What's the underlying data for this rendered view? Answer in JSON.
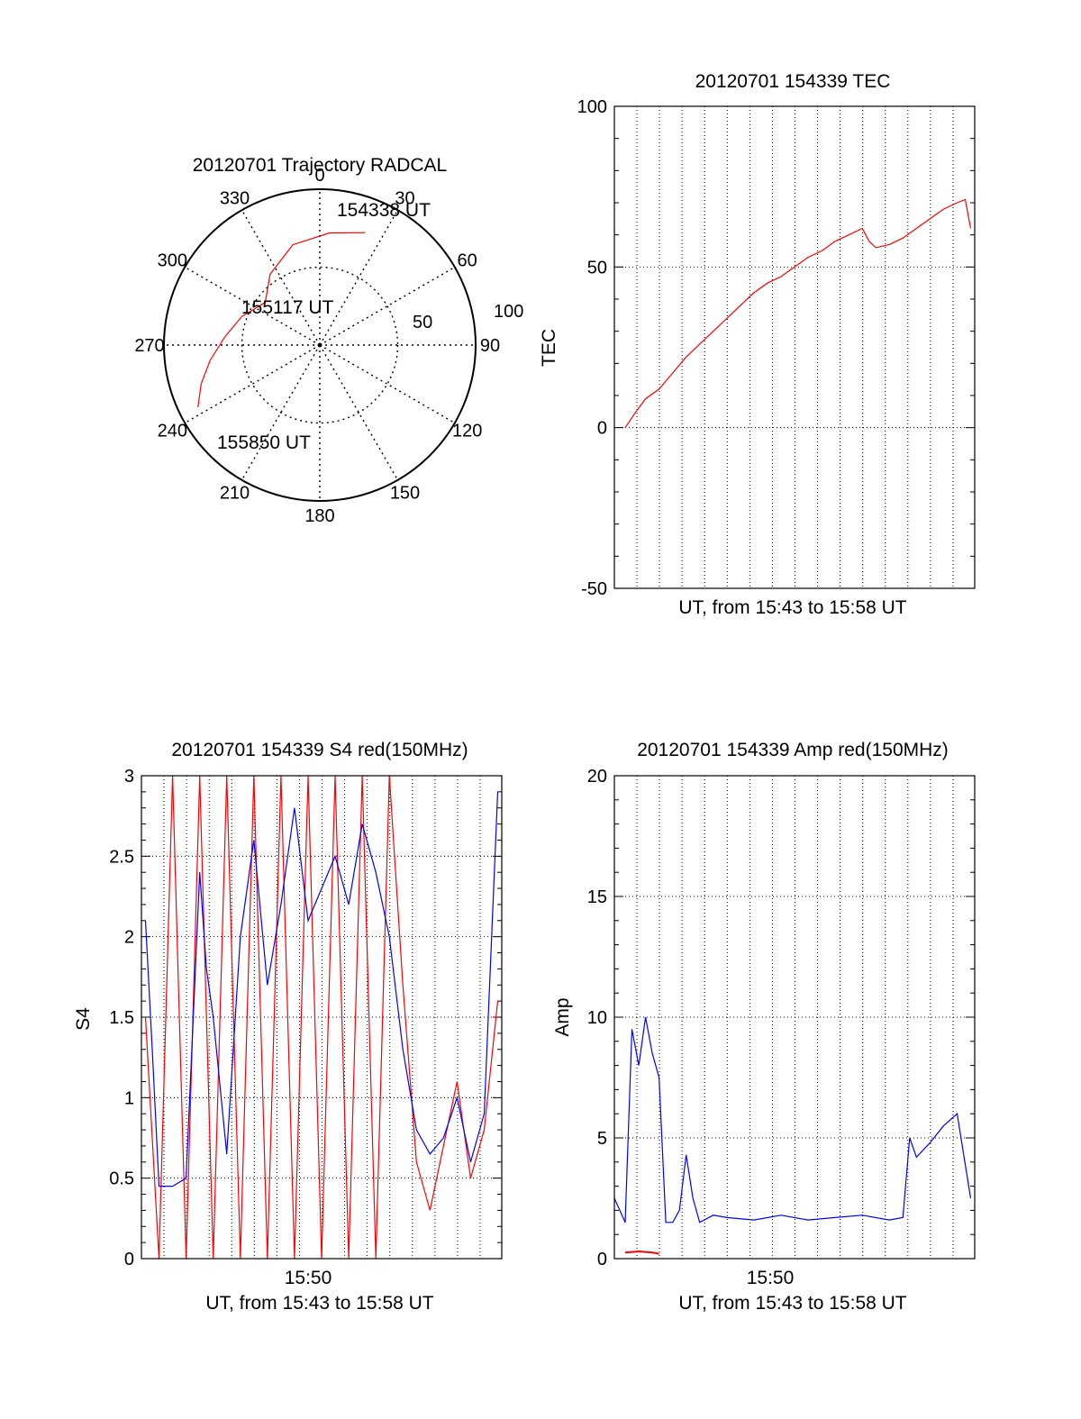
{
  "colors": {
    "red": "#ff0000",
    "blue": "#0000ff",
    "axis": "#000000",
    "grid": "#000000"
  },
  "chart_data": [
    {
      "id": "trajectory",
      "type": "polar",
      "title": "20120701 Trajectory RADCAL",
      "azimuth_labels": [
        "0",
        "30",
        "60",
        "90",
        "120",
        "150",
        "180",
        "210",
        "240",
        "270",
        "300",
        "330"
      ],
      "elevation_ring_labels": [
        "50",
        "100"
      ],
      "annotations": [
        {
          "text": "154338 UT",
          "azimuth": 22,
          "elevation": 20
        },
        {
          "text": "155117 UT",
          "azimuth": 308,
          "elevation": 50
        },
        {
          "text": "155850 UT",
          "azimuth": 243,
          "elevation": 11
        }
      ],
      "trajectory": {
        "color": "red",
        "points": [
          {
            "azimuth": 22,
            "elevation": 20
          },
          {
            "azimuth": 5,
            "elevation": 25
          },
          {
            "azimuth": 345,
            "elevation": 30
          },
          {
            "azimuth": 325,
            "elevation": 40
          },
          {
            "azimuth": 308,
            "elevation": 50
          },
          {
            "azimuth": 290,
            "elevation": 42
          },
          {
            "azimuth": 275,
            "elevation": 35
          },
          {
            "azimuth": 262,
            "elevation": 26
          },
          {
            "azimuth": 252,
            "elevation": 18
          },
          {
            "azimuth": 243,
            "elevation": 11
          }
        ]
      }
    },
    {
      "id": "tec",
      "type": "line",
      "title": "20120701 154339 TEC",
      "xlabel": "UT, from 15:43 to 15:58 UT",
      "ylabel": "TEC",
      "ylim": [
        -50,
        100
      ],
      "yticks": [
        "-50",
        "0",
        "50",
        "100"
      ],
      "xlim": [
        15.717,
        15.983
      ],
      "xtick_labels": [],
      "grid": true,
      "series": [
        {
          "color": "red",
          "x": [
            15.725,
            15.733,
            15.74,
            15.75,
            15.76,
            15.77,
            15.78,
            15.79,
            15.8,
            15.81,
            15.82,
            15.83,
            15.84,
            15.85,
            15.86,
            15.87,
            15.88,
            15.89,
            15.9,
            15.905,
            15.91,
            15.92,
            15.93,
            15.94,
            15.95,
            15.96,
            15.97,
            15.976,
            15.98
          ],
          "values": [
            0,
            5,
            9,
            12,
            17,
            22,
            26,
            30,
            34,
            38,
            42,
            45,
            47,
            50,
            53,
            55,
            58,
            60,
            62,
            58,
            56,
            57,
            59,
            62,
            65,
            68,
            70,
            71,
            62
          ]
        }
      ]
    },
    {
      "id": "s4",
      "type": "line",
      "title": "20120701 154339 S4 red(150MHz)",
      "xlabel": "UT, from 15:43 to 15:58 UT",
      "ylabel": "S4",
      "ylim": [
        0,
        3
      ],
      "yticks": [
        "0",
        "0.5",
        "1",
        "1.5",
        "2",
        "2.5",
        "3"
      ],
      "xlim": [
        15.717,
        15.983
      ],
      "xtick_labels": [
        {
          "text": "15:50",
          "x": 15.833
        }
      ],
      "grid": true,
      "series": [
        {
          "color": "red",
          "x": [
            15.72,
            15.73,
            15.74,
            15.75,
            15.76,
            15.77,
            15.78,
            15.79,
            15.8,
            15.81,
            15.82,
            15.83,
            15.84,
            15.85,
            15.86,
            15.87,
            15.88,
            15.89,
            15.9,
            15.91,
            15.92,
            15.93,
            15.94,
            15.95,
            15.96,
            15.97,
            15.98
          ],
          "values": [
            1.5,
            0,
            3,
            0,
            3,
            0,
            3,
            0,
            3,
            0,
            3,
            0,
            3,
            0,
            3,
            0,
            3,
            0,
            3,
            1.7,
            0.6,
            0.3,
            0.7,
            1.1,
            0.5,
            0.8,
            1.6
          ]
        },
        {
          "color": "blue",
          "x": [
            15.72,
            15.725,
            15.73,
            15.74,
            15.75,
            15.76,
            15.765,
            15.77,
            15.78,
            15.79,
            15.8,
            15.81,
            15.82,
            15.83,
            15.84,
            15.85,
            15.86,
            15.87,
            15.88,
            15.89,
            15.9,
            15.91,
            15.92,
            15.93,
            15.94,
            15.95,
            15.96,
            15.97,
            15.98
          ],
          "values": [
            2.1,
            1.3,
            0.45,
            0.45,
            0.5,
            2.4,
            1.8,
            1.5,
            0.65,
            2.0,
            2.6,
            1.7,
            2.2,
            2.8,
            2.1,
            2.3,
            2.5,
            2.2,
            2.7,
            2.4,
            2.0,
            1.3,
            0.8,
            0.65,
            0.75,
            1.0,
            0.6,
            0.9,
            2.9
          ]
        }
      ]
    },
    {
      "id": "amp",
      "type": "line",
      "title": "20120701 154339 Amp red(150MHz)",
      "xlabel": "UT, from 15:43 to 15:58 UT",
      "ylabel": "Amp",
      "ylim": [
        0,
        20
      ],
      "yticks": [
        "0",
        "5",
        "10",
        "15",
        "20"
      ],
      "xlim": [
        15.717,
        15.983
      ],
      "xtick_labels": [
        {
          "text": "15:50",
          "x": 15.833
        }
      ],
      "grid": true,
      "series": [
        {
          "color": "blue",
          "x": [
            15.717,
            15.725,
            15.73,
            15.735,
            15.74,
            15.745,
            15.75,
            15.755,
            15.76,
            15.765,
            15.77,
            15.775,
            15.78,
            15.79,
            15.8,
            15.82,
            15.84,
            15.86,
            15.88,
            15.9,
            15.92,
            15.93,
            15.935,
            15.94,
            15.95,
            15.96,
            15.97,
            15.98
          ],
          "values": [
            2.5,
            1.5,
            9.5,
            8.0,
            10.0,
            8.5,
            7.5,
            1.5,
            1.5,
            2.0,
            4.3,
            2.5,
            1.5,
            1.8,
            1.7,
            1.6,
            1.8,
            1.6,
            1.7,
            1.8,
            1.6,
            1.7,
            5.0,
            4.2,
            4.8,
            5.5,
            6.0,
            2.5
          ]
        },
        {
          "color": "red",
          "x": [
            15.725,
            15.735,
            15.745,
            15.75
          ],
          "values": [
            0.25,
            0.3,
            0.25,
            0.2
          ]
        }
      ]
    }
  ]
}
